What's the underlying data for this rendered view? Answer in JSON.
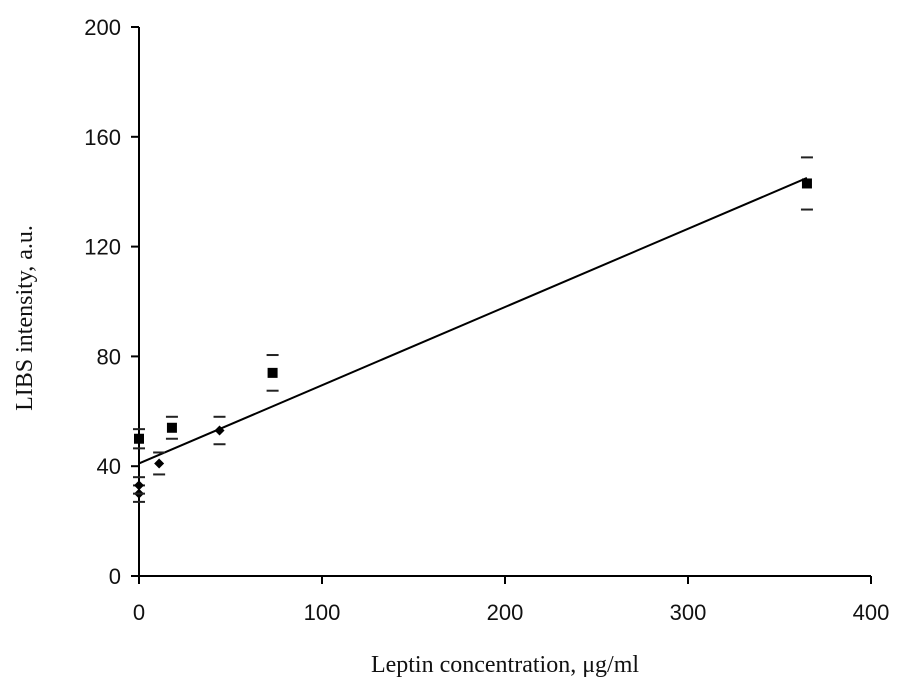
{
  "chart_data": {
    "type": "scatter",
    "title": "",
    "xlabel": "Leptin concentration, μg/ml",
    "ylabel": "LIBS intensity, a.u.",
    "xlim": [
      0,
      400
    ],
    "ylim": [
      0,
      200
    ],
    "x_ticks": [
      "0",
      "100",
      "200",
      "300",
      "400"
    ],
    "y_ticks": [
      "0",
      "40",
      "80",
      "120",
      "160",
      "200"
    ],
    "grid": false,
    "legend": "none",
    "series": [
      {
        "marker": "square",
        "points": [
          {
            "x": 0,
            "y": 50,
            "err": 3.5
          },
          {
            "x": 18,
            "y": 54,
            "err": 4
          },
          {
            "x": 73,
            "y": 74,
            "err": 6.5
          },
          {
            "x": 365,
            "y": 143,
            "err": 9.5
          }
        ]
      },
      {
        "marker": "diamond",
        "points": [
          {
            "x": 0,
            "y": 30,
            "err": 3
          },
          {
            "x": 0,
            "y": 33,
            "err": 3
          },
          {
            "x": 11,
            "y": 41,
            "err": 4
          },
          {
            "x": 44,
            "y": 53,
            "err": 5
          }
        ]
      }
    ],
    "fit_line": {
      "x": [
        0,
        365
      ],
      "y": [
        41,
        145
      ]
    }
  }
}
